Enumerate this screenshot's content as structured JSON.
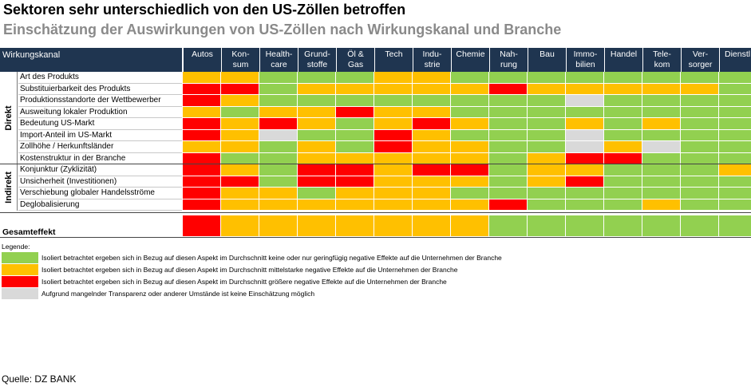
{
  "title": "Sektoren sehr unterschiedlich von den US-Zöllen betroffen",
  "subtitle": "Einschätzung der Auswirkungen von US-Zöllen nach Wirkungskanal und Branche",
  "colors": {
    "g": "#92d050",
    "y": "#ffc000",
    "r": "#ff0000",
    "x": "#d9d9d9",
    "header": "#1f3550"
  },
  "chart_data": {
    "type": "heatmap",
    "row_header": "Wirkungskanal",
    "columns": [
      "Autos",
      "Kon-\nsum",
      "Health-\ncare",
      "Grund-\nstoffe",
      "Öl &\nGas",
      "Tech",
      "Indu-\nstrie",
      "Chemie",
      "Nah-\nrung",
      "Bau",
      "Immo-\nbilien",
      "Handel",
      "Tele-\nkom",
      "Ver-\nsorger",
      "Dienstl."
    ],
    "groups": [
      {
        "name": "Direkt",
        "rows": [
          {
            "label": "Art des Produkts",
            "cells": [
              "y",
              "y",
              "g",
              "g",
              "g",
              "y",
              "y",
              "g",
              "g",
              "g",
              "g",
              "g",
              "g",
              "g",
              "g"
            ]
          },
          {
            "label": "Substituierbarkeit des Produkts",
            "cells": [
              "r",
              "r",
              "g",
              "y",
              "y",
              "y",
              "y",
              "y",
              "r",
              "y",
              "y",
              "y",
              "y",
              "y",
              "g"
            ]
          },
          {
            "label": "Produktionsstandorte der Wettbewerber",
            "cells": [
              "r",
              "y",
              "g",
              "g",
              "g",
              "g",
              "g",
              "g",
              "g",
              "g",
              "x",
              "g",
              "g",
              "g",
              "g"
            ]
          },
          {
            "label": "Ausweitung lokaler Produktion",
            "cells": [
              "y",
              "g",
              "y",
              "y",
              "r",
              "y",
              "y",
              "g",
              "g",
              "g",
              "g",
              "g",
              "g",
              "g",
              "g"
            ]
          },
          {
            "label": "Bedeutung US-Markt",
            "cells": [
              "r",
              "y",
              "r",
              "y",
              "g",
              "y",
              "r",
              "y",
              "g",
              "g",
              "y",
              "g",
              "y",
              "g",
              "g"
            ]
          },
          {
            "label": "Import-Anteil im US-Markt",
            "cells": [
              "r",
              "y",
              "x",
              "g",
              "g",
              "r",
              "y",
              "g",
              "g",
              "g",
              "x",
              "g",
              "g",
              "g",
              "g"
            ]
          },
          {
            "label": "Zollhöhe / Herkunftsländer",
            "cells": [
              "y",
              "y",
              "g",
              "y",
              "g",
              "r",
              "y",
              "y",
              "g",
              "g",
              "x",
              "y",
              "x",
              "g",
              "g"
            ]
          },
          {
            "label": "Kostenstruktur in der Branche",
            "cells": [
              "r",
              "g",
              "g",
              "y",
              "y",
              "y",
              "y",
              "y",
              "g",
              "y",
              "r",
              "r",
              "g",
              "g",
              "g"
            ]
          }
        ]
      },
      {
        "name": "Indirekt",
        "rows": [
          {
            "label": "Konjunktur (Zyklizität)",
            "cells": [
              "r",
              "y",
              "g",
              "r",
              "r",
              "y",
              "r",
              "r",
              "g",
              "y",
              "y",
              "g",
              "g",
              "g",
              "y"
            ]
          },
          {
            "label": "Unsicherheit (Investitionen)",
            "cells": [
              "r",
              "r",
              "g",
              "r",
              "r",
              "y",
              "y",
              "y",
              "g",
              "y",
              "r",
              "g",
              "g",
              "g",
              "g"
            ]
          },
          {
            "label": "Verschiebung globaler Handelsströme",
            "cells": [
              "r",
              "y",
              "y",
              "g",
              "y",
              "y",
              "y",
              "g",
              "g",
              "g",
              "g",
              "g",
              "g",
              "g",
              "g"
            ]
          },
          {
            "label": "Deglobalisierung",
            "cells": [
              "r",
              "y",
              "y",
              "y",
              "y",
              "y",
              "y",
              "y",
              "r",
              "g",
              "g",
              "g",
              "y",
              "g",
              "g"
            ]
          }
        ]
      }
    ],
    "total_label": "Gesamteffekt",
    "total": [
      "r",
      "y",
      "y",
      "y",
      "y",
      "y",
      "y",
      "y",
      "g",
      "g",
      "g",
      "g",
      "g",
      "g",
      "g"
    ]
  },
  "legend": {
    "title": "Legende:",
    "items": [
      {
        "color": "g",
        "text": "Isoliert betrachtet ergeben sich in Bezug auf diesen Aspekt im Durchschnitt keine oder nur geringfügig negative Effekte auf die Unternehmen der Branche"
      },
      {
        "color": "y",
        "text": "Isoliert betrachtet ergeben sich in Bezug auf diesen Aspekt im Durchschnitt mittelstarke negative Effekte auf die Unternehmen der Branche"
      },
      {
        "color": "r",
        "text": "Isoliert betrachtet ergeben sich in Bezug auf diesen Aspekt im Durchschnitt größere negative Effekte auf die Unternehmen der Branche"
      },
      {
        "color": "x",
        "text": "Aufgrund mangelnder Transparenz oder anderer Umstände ist keine Einschätzung möglich"
      }
    ]
  },
  "source": "Quelle: DZ BANK"
}
